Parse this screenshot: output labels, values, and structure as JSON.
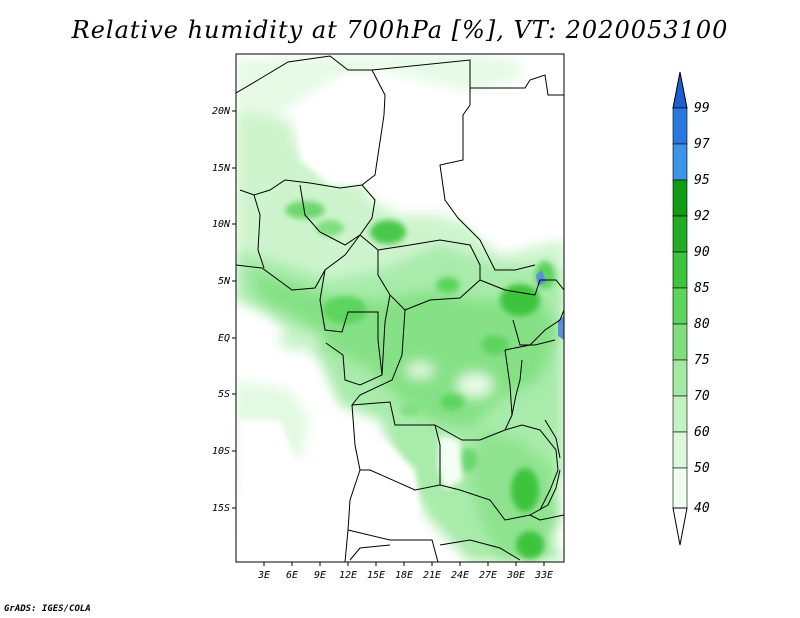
{
  "title": "Relative humidity at 700hPa [%], VT: 2020053100",
  "footer": "GrADS: IGES/COLA",
  "map": {
    "lat_labels": [
      "20N",
      "15N",
      "10N",
      "5N",
      "EQ",
      "5S",
      "10S",
      "15S"
    ],
    "lon_labels": [
      "3E",
      "6E",
      "9E",
      "12E",
      "15E",
      "18E",
      "21E",
      "24E",
      "27E",
      "30E",
      "33E"
    ]
  },
  "colorbar": {
    "labels": [
      "99",
      "97",
      "95",
      "92",
      "90",
      "85",
      "80",
      "75",
      "70",
      "60",
      "50",
      "40"
    ],
    "colors": [
      "#1c5fcf",
      "#2878e0",
      "#3d95ea",
      "#119c11",
      "#23ad23",
      "#3ec43e",
      "#5dd45d",
      "#7fdf7f",
      "#a3e9a3",
      "#c2f2c2",
      "#dcf8dc",
      "#f0fdf0",
      "#ffffff"
    ]
  }
}
